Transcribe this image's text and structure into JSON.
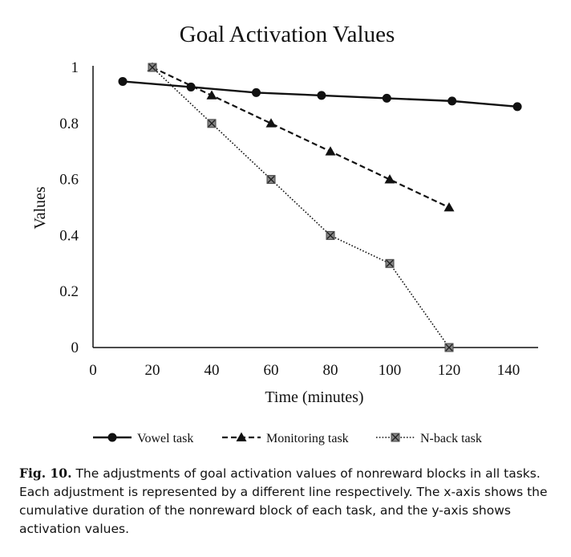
{
  "chart_data": {
    "type": "line",
    "title": "Goal Activation Values",
    "xlabel": "Time (minutes)",
    "ylabel": "Values",
    "xlim": [
      0,
      150
    ],
    "ylim": [
      0,
      1
    ],
    "x_ticks": [
      "0",
      "20",
      "40",
      "60",
      "80",
      "100",
      "120",
      "140"
    ],
    "y_ticks": [
      "0",
      "0.2",
      "0.4",
      "0.6",
      "0.8",
      "1"
    ],
    "x_tick_values": [
      0,
      20,
      40,
      60,
      80,
      100,
      120,
      140
    ],
    "y_tick_values": [
      0,
      0.2,
      0.4,
      0.6,
      0.8,
      1
    ],
    "grid": false,
    "legend_position": "bottom",
    "series": [
      {
        "name": "Vowel task",
        "marker": "circle",
        "line": "solid",
        "x": [
          10,
          33,
          55,
          77,
          99,
          121,
          143
        ],
        "y": [
          0.95,
          0.93,
          0.91,
          0.9,
          0.89,
          0.88,
          0.86
        ]
      },
      {
        "name": "Monitoring task",
        "marker": "triangle",
        "line": "dashed",
        "x": [
          20,
          40,
          60,
          80,
          100,
          120
        ],
        "y": [
          1.0,
          0.9,
          0.8,
          0.7,
          0.6,
          0.5
        ]
      },
      {
        "name": "N-back task",
        "marker": "square",
        "line": "dotted",
        "x": [
          20,
          40,
          60,
          80,
          100,
          120
        ],
        "y": [
          1.0,
          0.8,
          0.6,
          0.4,
          0.3,
          0.0
        ]
      }
    ]
  },
  "caption": {
    "label": "Fig. 10.",
    "text": "The adjustments of goal activation values of nonreward blocks in all tasks. Each adjustment is represented by a different line respectively. The x-axis shows the cumulative duration of the nonreward block of each task, and the y-axis shows activation values."
  }
}
